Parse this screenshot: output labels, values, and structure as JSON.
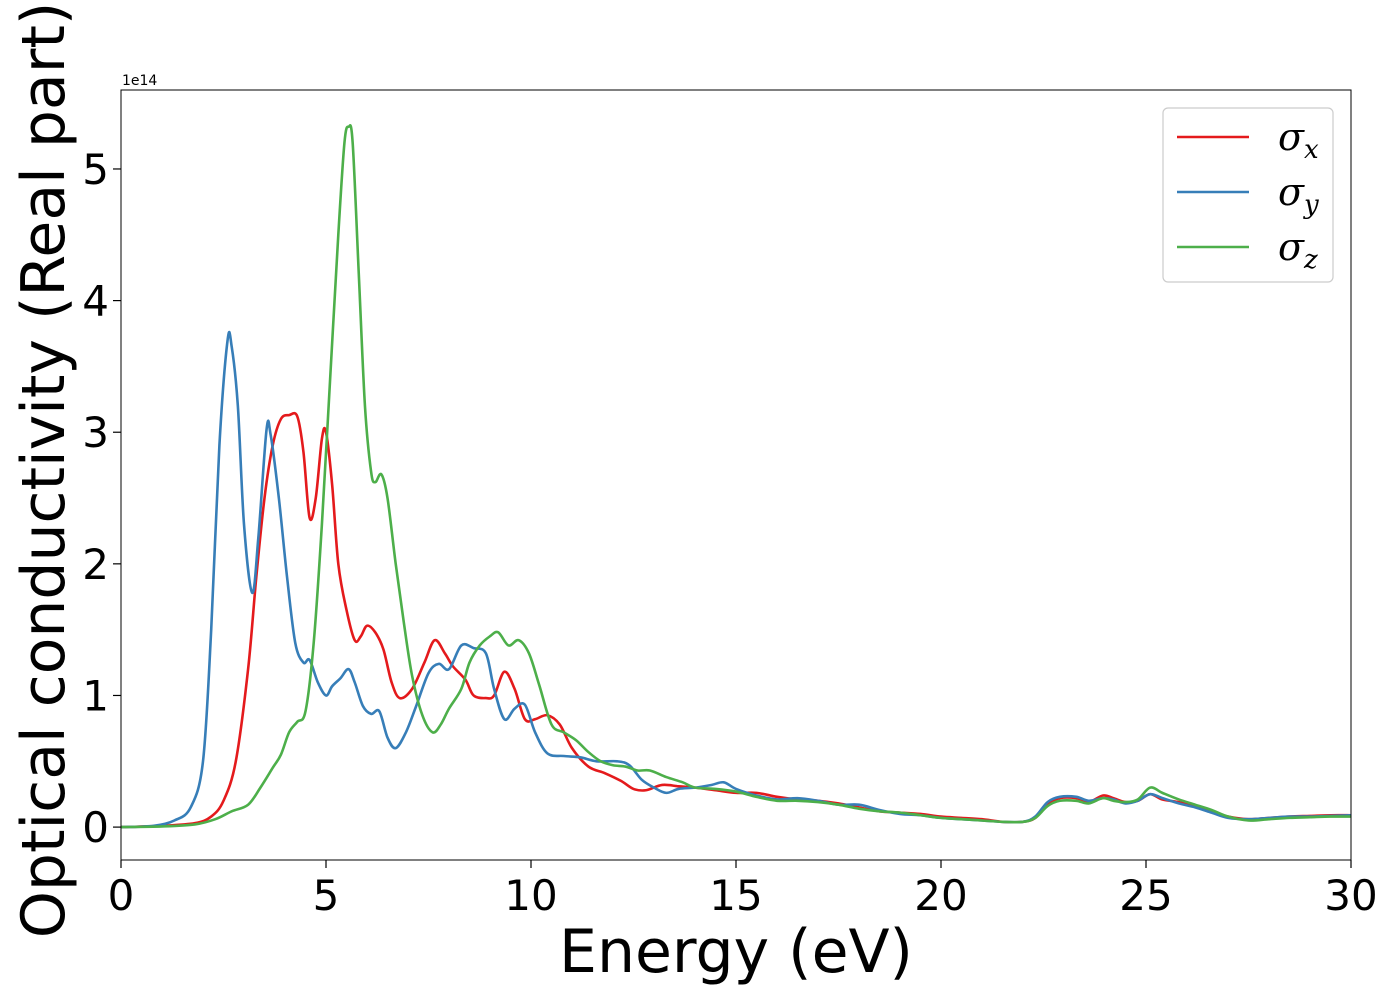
{
  "chart_data": {
    "type": "line",
    "title": "",
    "xlabel": "Energy (eV)",
    "ylabel": "Optical conductivity (Real part)",
    "y_offset_label": "1e14",
    "xlim": [
      0,
      30
    ],
    "ylim": [
      -0.25,
      5.6
    ],
    "y_scale_factor": 100000000000000.0,
    "x_ticks": [
      0,
      5,
      10,
      15,
      20,
      25,
      30
    ],
    "x_tick_labels": [
      "0",
      "5",
      "10",
      "15",
      "20",
      "25",
      "30"
    ],
    "y_ticks": [
      0,
      1,
      2,
      3,
      4,
      5
    ],
    "y_tick_labels": [
      "0",
      "1",
      "2",
      "3",
      "4",
      "5"
    ],
    "grid": false,
    "legend_position": "top-right",
    "series": [
      {
        "name": "x",
        "legend_base": "σ",
        "legend_sub": "x",
        "color": "#e41a1c",
        "points": [
          [
            0,
            0
          ],
          [
            1.0,
            0.01
          ],
          [
            1.8,
            0.03
          ],
          [
            2.2,
            0.08
          ],
          [
            2.5,
            0.2
          ],
          [
            2.8,
            0.5
          ],
          [
            3.1,
            1.2
          ],
          [
            3.3,
            1.9
          ],
          [
            3.5,
            2.5
          ],
          [
            3.7,
            2.9
          ],
          [
            3.9,
            3.1
          ],
          [
            4.1,
            3.13
          ],
          [
            4.3,
            3.12
          ],
          [
            4.45,
            2.85
          ],
          [
            4.6,
            2.35
          ],
          [
            4.75,
            2.5
          ],
          [
            4.9,
            2.95
          ],
          [
            5.0,
            3.0
          ],
          [
            5.15,
            2.6
          ],
          [
            5.3,
            2.0
          ],
          [
            5.5,
            1.65
          ],
          [
            5.7,
            1.42
          ],
          [
            5.85,
            1.45
          ],
          [
            6.0,
            1.53
          ],
          [
            6.2,
            1.48
          ],
          [
            6.4,
            1.35
          ],
          [
            6.6,
            1.1
          ],
          [
            6.8,
            0.98
          ],
          [
            7.1,
            1.05
          ],
          [
            7.4,
            1.25
          ],
          [
            7.65,
            1.42
          ],
          [
            7.9,
            1.32
          ],
          [
            8.1,
            1.22
          ],
          [
            8.4,
            1.12
          ],
          [
            8.6,
            1.0
          ],
          [
            8.9,
            0.98
          ],
          [
            9.1,
            1.0
          ],
          [
            9.35,
            1.18
          ],
          [
            9.6,
            1.05
          ],
          [
            9.85,
            0.82
          ],
          [
            10.1,
            0.82
          ],
          [
            10.4,
            0.85
          ],
          [
            10.7,
            0.78
          ],
          [
            11.0,
            0.6
          ],
          [
            11.4,
            0.46
          ],
          [
            11.8,
            0.41
          ],
          [
            12.2,
            0.35
          ],
          [
            12.5,
            0.29
          ],
          [
            12.8,
            0.28
          ],
          [
            13.2,
            0.32
          ],
          [
            13.6,
            0.31
          ],
          [
            14.0,
            0.3
          ],
          [
            14.5,
            0.28
          ],
          [
            15.0,
            0.26
          ],
          [
            15.5,
            0.26
          ],
          [
            16.0,
            0.23
          ],
          [
            16.5,
            0.21
          ],
          [
            17.0,
            0.2
          ],
          [
            17.5,
            0.18
          ],
          [
            18.0,
            0.15
          ],
          [
            18.5,
            0.12
          ],
          [
            19.0,
            0.11
          ],
          [
            19.5,
            0.1
          ],
          [
            20.0,
            0.08
          ],
          [
            20.5,
            0.07
          ],
          [
            21.0,
            0.06
          ],
          [
            21.5,
            0.04
          ],
          [
            22.0,
            0.04
          ],
          [
            22.3,
            0.07
          ],
          [
            22.6,
            0.17
          ],
          [
            22.9,
            0.22
          ],
          [
            23.3,
            0.22
          ],
          [
            23.6,
            0.19
          ],
          [
            23.95,
            0.24
          ],
          [
            24.2,
            0.22
          ],
          [
            24.5,
            0.19
          ],
          [
            24.8,
            0.2
          ],
          [
            25.1,
            0.25
          ],
          [
            25.4,
            0.21
          ],
          [
            25.8,
            0.19
          ],
          [
            26.2,
            0.16
          ],
          [
            26.6,
            0.12
          ],
          [
            27.0,
            0.08
          ],
          [
            27.5,
            0.06
          ],
          [
            28.0,
            0.07
          ],
          [
            28.5,
            0.08
          ],
          [
            29.0,
            0.085
          ],
          [
            29.5,
            0.09
          ],
          [
            30.0,
            0.09
          ]
        ]
      },
      {
        "name": "y",
        "legend_base": "σ",
        "legend_sub": "y",
        "color": "#377eb8",
        "points": [
          [
            0,
            0
          ],
          [
            0.8,
            0.01
          ],
          [
            1.3,
            0.05
          ],
          [
            1.7,
            0.15
          ],
          [
            2.0,
            0.5
          ],
          [
            2.2,
            1.5
          ],
          [
            2.4,
            2.9
          ],
          [
            2.6,
            3.7
          ],
          [
            2.7,
            3.65
          ],
          [
            2.85,
            3.2
          ],
          [
            3.0,
            2.3
          ],
          [
            3.2,
            1.78
          ],
          [
            3.35,
            2.2
          ],
          [
            3.55,
            3.02
          ],
          [
            3.65,
            2.98
          ],
          [
            3.85,
            2.5
          ],
          [
            4.05,
            1.9
          ],
          [
            4.25,
            1.4
          ],
          [
            4.45,
            1.25
          ],
          [
            4.6,
            1.27
          ],
          [
            4.8,
            1.1
          ],
          [
            5.0,
            1.0
          ],
          [
            5.15,
            1.07
          ],
          [
            5.35,
            1.13
          ],
          [
            5.55,
            1.2
          ],
          [
            5.7,
            1.1
          ],
          [
            5.9,
            0.92
          ],
          [
            6.1,
            0.86
          ],
          [
            6.3,
            0.88
          ],
          [
            6.5,
            0.68
          ],
          [
            6.7,
            0.6
          ],
          [
            6.95,
            0.72
          ],
          [
            7.2,
            0.92
          ],
          [
            7.5,
            1.17
          ],
          [
            7.75,
            1.24
          ],
          [
            8.0,
            1.2
          ],
          [
            8.3,
            1.38
          ],
          [
            8.6,
            1.36
          ],
          [
            8.9,
            1.32
          ],
          [
            9.1,
            1.05
          ],
          [
            9.35,
            0.82
          ],
          [
            9.6,
            0.9
          ],
          [
            9.85,
            0.93
          ],
          [
            10.1,
            0.72
          ],
          [
            10.4,
            0.56
          ],
          [
            10.8,
            0.54
          ],
          [
            11.2,
            0.53
          ],
          [
            11.6,
            0.5
          ],
          [
            12.1,
            0.5
          ],
          [
            12.4,
            0.47
          ],
          [
            12.7,
            0.36
          ],
          [
            13.0,
            0.3
          ],
          [
            13.3,
            0.26
          ],
          [
            13.6,
            0.29
          ],
          [
            14.0,
            0.3
          ],
          [
            14.4,
            0.32
          ],
          [
            14.7,
            0.34
          ],
          [
            15.0,
            0.29
          ],
          [
            15.5,
            0.24
          ],
          [
            16.0,
            0.21
          ],
          [
            16.5,
            0.22
          ],
          [
            17.0,
            0.2
          ],
          [
            17.5,
            0.17
          ],
          [
            18.0,
            0.17
          ],
          [
            18.5,
            0.13
          ],
          [
            19.0,
            0.1
          ],
          [
            19.5,
            0.09
          ],
          [
            20.0,
            0.07
          ],
          [
            20.5,
            0.06
          ],
          [
            21.0,
            0.05
          ],
          [
            21.5,
            0.04
          ],
          [
            22.0,
            0.04
          ],
          [
            22.3,
            0.08
          ],
          [
            22.6,
            0.19
          ],
          [
            22.9,
            0.23
          ],
          [
            23.3,
            0.23
          ],
          [
            23.6,
            0.2
          ],
          [
            23.95,
            0.22
          ],
          [
            24.2,
            0.21
          ],
          [
            24.5,
            0.18
          ],
          [
            24.8,
            0.2
          ],
          [
            25.1,
            0.25
          ],
          [
            25.4,
            0.22
          ],
          [
            25.8,
            0.18
          ],
          [
            26.2,
            0.15
          ],
          [
            26.6,
            0.11
          ],
          [
            27.0,
            0.07
          ],
          [
            27.5,
            0.06
          ],
          [
            28.0,
            0.07
          ],
          [
            28.5,
            0.08
          ],
          [
            29.0,
            0.08
          ],
          [
            29.5,
            0.085
          ],
          [
            30.0,
            0.09
          ]
        ]
      },
      {
        "name": "z",
        "legend_base": "σ",
        "legend_sub": "z",
        "color": "#4daf4a",
        "points": [
          [
            0,
            0
          ],
          [
            1.0,
            0.005
          ],
          [
            1.8,
            0.02
          ],
          [
            2.3,
            0.06
          ],
          [
            2.7,
            0.12
          ],
          [
            3.1,
            0.17
          ],
          [
            3.4,
            0.3
          ],
          [
            3.7,
            0.45
          ],
          [
            3.9,
            0.55
          ],
          [
            4.1,
            0.72
          ],
          [
            4.3,
            0.8
          ],
          [
            4.5,
            0.88
          ],
          [
            4.7,
            1.4
          ],
          [
            4.9,
            2.3
          ],
          [
            5.1,
            3.4
          ],
          [
            5.3,
            4.5
          ],
          [
            5.45,
            5.2
          ],
          [
            5.55,
            5.32
          ],
          [
            5.65,
            5.2
          ],
          [
            5.8,
            4.2
          ],
          [
            5.95,
            3.2
          ],
          [
            6.1,
            2.7
          ],
          [
            6.2,
            2.62
          ],
          [
            6.35,
            2.68
          ],
          [
            6.5,
            2.5
          ],
          [
            6.7,
            2.0
          ],
          [
            6.9,
            1.55
          ],
          [
            7.1,
            1.15
          ],
          [
            7.35,
            0.85
          ],
          [
            7.6,
            0.72
          ],
          [
            7.8,
            0.78
          ],
          [
            8.0,
            0.9
          ],
          [
            8.3,
            1.05
          ],
          [
            8.5,
            1.25
          ],
          [
            8.75,
            1.38
          ],
          [
            9.0,
            1.45
          ],
          [
            9.2,
            1.48
          ],
          [
            9.45,
            1.38
          ],
          [
            9.7,
            1.42
          ],
          [
            9.95,
            1.32
          ],
          [
            10.2,
            1.08
          ],
          [
            10.5,
            0.78
          ],
          [
            10.8,
            0.72
          ],
          [
            11.1,
            0.66
          ],
          [
            11.4,
            0.57
          ],
          [
            11.7,
            0.5
          ],
          [
            12.0,
            0.47
          ],
          [
            12.3,
            0.46
          ],
          [
            12.6,
            0.43
          ],
          [
            12.9,
            0.43
          ],
          [
            13.3,
            0.38
          ],
          [
            13.7,
            0.34
          ],
          [
            14.0,
            0.3
          ],
          [
            14.5,
            0.29
          ],
          [
            15.0,
            0.27
          ],
          [
            15.5,
            0.23
          ],
          [
            16.0,
            0.2
          ],
          [
            16.5,
            0.2
          ],
          [
            17.0,
            0.19
          ],
          [
            17.5,
            0.17
          ],
          [
            18.0,
            0.14
          ],
          [
            18.5,
            0.12
          ],
          [
            19.0,
            0.11
          ],
          [
            19.5,
            0.09
          ],
          [
            20.0,
            0.07
          ],
          [
            20.5,
            0.06
          ],
          [
            21.0,
            0.05
          ],
          [
            21.5,
            0.04
          ],
          [
            22.0,
            0.04
          ],
          [
            22.3,
            0.07
          ],
          [
            22.6,
            0.16
          ],
          [
            22.9,
            0.2
          ],
          [
            23.3,
            0.2
          ],
          [
            23.6,
            0.18
          ],
          [
            23.95,
            0.22
          ],
          [
            24.2,
            0.2
          ],
          [
            24.5,
            0.19
          ],
          [
            24.8,
            0.21
          ],
          [
            25.1,
            0.3
          ],
          [
            25.4,
            0.26
          ],
          [
            25.8,
            0.21
          ],
          [
            26.2,
            0.17
          ],
          [
            26.6,
            0.13
          ],
          [
            27.0,
            0.08
          ],
          [
            27.5,
            0.05
          ],
          [
            28.0,
            0.06
          ],
          [
            28.5,
            0.07
          ],
          [
            29.0,
            0.075
          ],
          [
            29.5,
            0.08
          ],
          [
            30.0,
            0.08
          ]
        ]
      }
    ]
  }
}
